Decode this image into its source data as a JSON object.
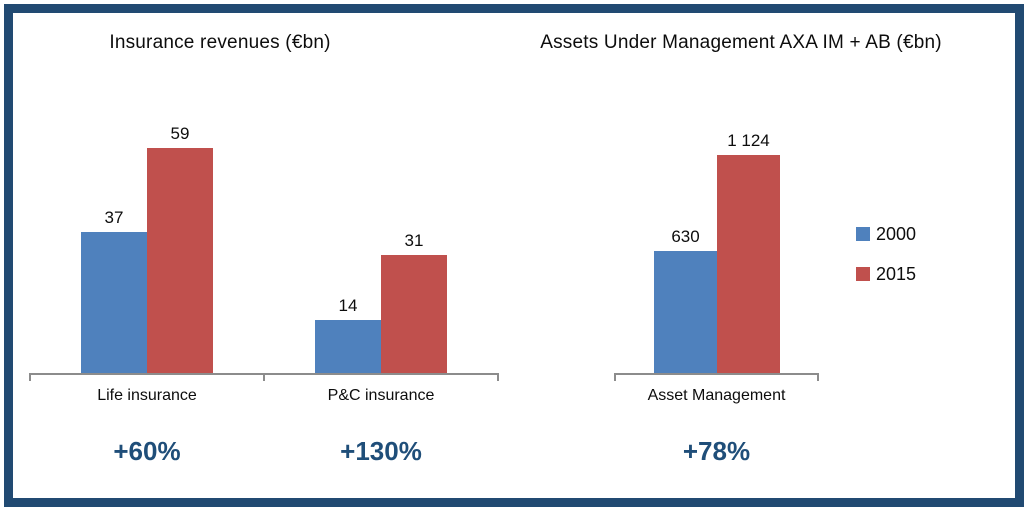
{
  "colors": {
    "series_2000": "#4F81BD",
    "series_2015": "#C0504D",
    "frame_border": "#214A72",
    "growth_text": "#1F4E79",
    "axis_line": "#8C8C8C"
  },
  "legend": {
    "position": "right",
    "items": [
      {
        "label": "2000",
        "color": "#4F81BD"
      },
      {
        "label": "2015",
        "color": "#C0504D"
      }
    ]
  },
  "chart_data": [
    {
      "type": "bar",
      "title": "Insurance revenues (€bn)",
      "categories": [
        "Life insurance",
        "P&C insurance"
      ],
      "series": [
        {
          "name": "2000",
          "color": "#4F81BD",
          "values": [
            37,
            14
          ],
          "labels": [
            "37",
            "14"
          ]
        },
        {
          "name": "2015",
          "color": "#C0504D",
          "values": [
            59,
            31
          ],
          "labels": [
            "59",
            "31"
          ]
        }
      ],
      "growth": [
        "+60%",
        "+130%"
      ],
      "xlabel": "",
      "ylabel": "",
      "ylim": [
        0,
        62
      ],
      "grid": false,
      "value_labels_shown": true
    },
    {
      "type": "bar",
      "title": "Assets Under Management AXA IM + AB (€bn)",
      "categories": [
        "Asset Management"
      ],
      "series": [
        {
          "name": "2000",
          "color": "#4F81BD",
          "values": [
            630
          ],
          "labels": [
            "630"
          ]
        },
        {
          "name": "2015",
          "color": "#C0504D",
          "values": [
            1124
          ],
          "labels": [
            "1 124"
          ]
        }
      ],
      "growth": [
        "+78%"
      ],
      "xlabel": "",
      "ylabel": "",
      "ylim": [
        0,
        1180
      ],
      "grid": false,
      "value_labels_shown": true
    }
  ]
}
